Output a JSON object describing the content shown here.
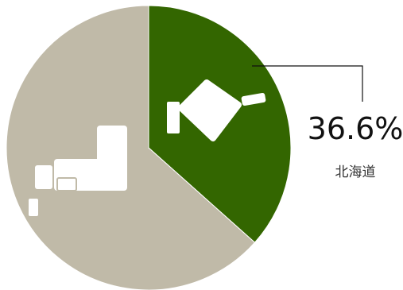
{
  "chart_data": {
    "type": "pie",
    "slices": [
      {
        "label": "北海道",
        "value": 36.6,
        "color": "#336600"
      },
      {
        "label": "",
        "value": 63.4,
        "color": "#c0baa8"
      }
    ],
    "highlight": {
      "value_text": "36.6%",
      "label": "北海道"
    }
  }
}
